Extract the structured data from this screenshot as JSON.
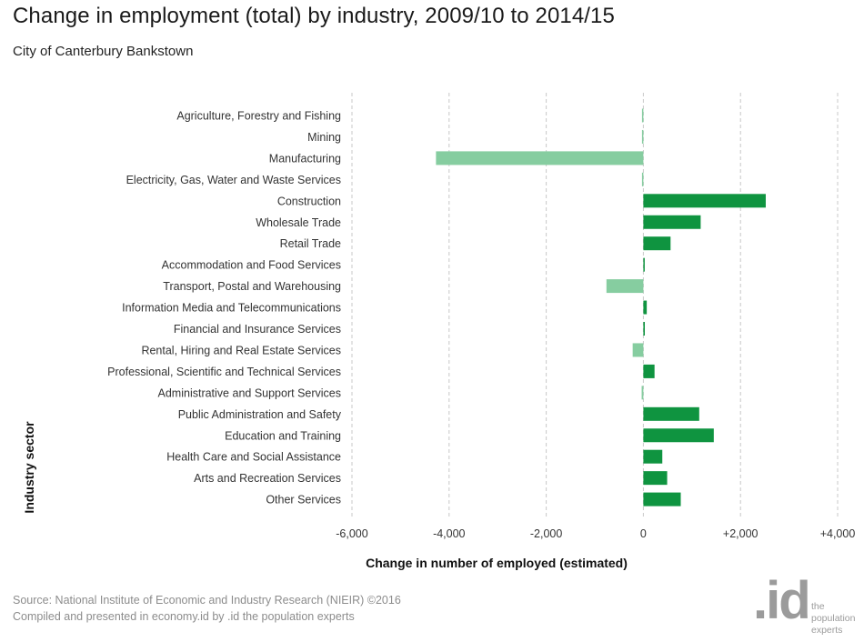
{
  "title": "Change in employment (total) by industry, 2009/10 to 2014/15",
  "subtitle": "City of Canterbury Bankstown",
  "footer": {
    "source": "Source: National Institute of Economic and Industry Research (NIEIR) ©2016",
    "compiled": "Compiled and presented in economy.id by .id the population experts"
  },
  "logo": {
    "mark": ".id",
    "line1": "the",
    "line2": "population",
    "line3": "experts"
  },
  "colors": {
    "positive": "#0f9440",
    "negative": "#86cda0",
    "grid": "#c8c8c8"
  },
  "chart_data": {
    "type": "bar",
    "orientation": "horizontal",
    "categories": [
      "Agriculture, Forestry and Fishing",
      "Mining",
      "Manufacturing",
      "Electricity, Gas, Water and Waste Services",
      "Construction",
      "Wholesale Trade",
      "Retail Trade",
      "Accommodation and Food Services",
      "Transport, Postal and Warehousing",
      "Information Media and Telecommunications",
      "Financial and Insurance Services",
      "Rental, Hiring and Real Estate Services",
      "Professional, Scientific and Technical Services",
      "Administrative and Support Services",
      "Public Administration and Safety",
      "Education and Training",
      "Health Care and Social Assistance",
      "Arts and Recreation Services",
      "Other Services"
    ],
    "values": [
      -15,
      -10,
      -4270,
      -20,
      2520,
      1180,
      560,
      25,
      -760,
      70,
      30,
      -220,
      230,
      -35,
      1150,
      1450,
      390,
      490,
      770
    ],
    "xlabel": "Change in number of employed (estimated)",
    "ylabel": "Industry sector",
    "xlim": [
      -6000,
      4000
    ],
    "xticks": [
      -6000,
      -4000,
      -2000,
      0,
      2000,
      4000
    ],
    "xtick_labels": [
      "-6,000",
      "-4,000",
      "-2,000",
      "0",
      "+2,000",
      "+4,000"
    ],
    "grid": "vertical dashed"
  }
}
